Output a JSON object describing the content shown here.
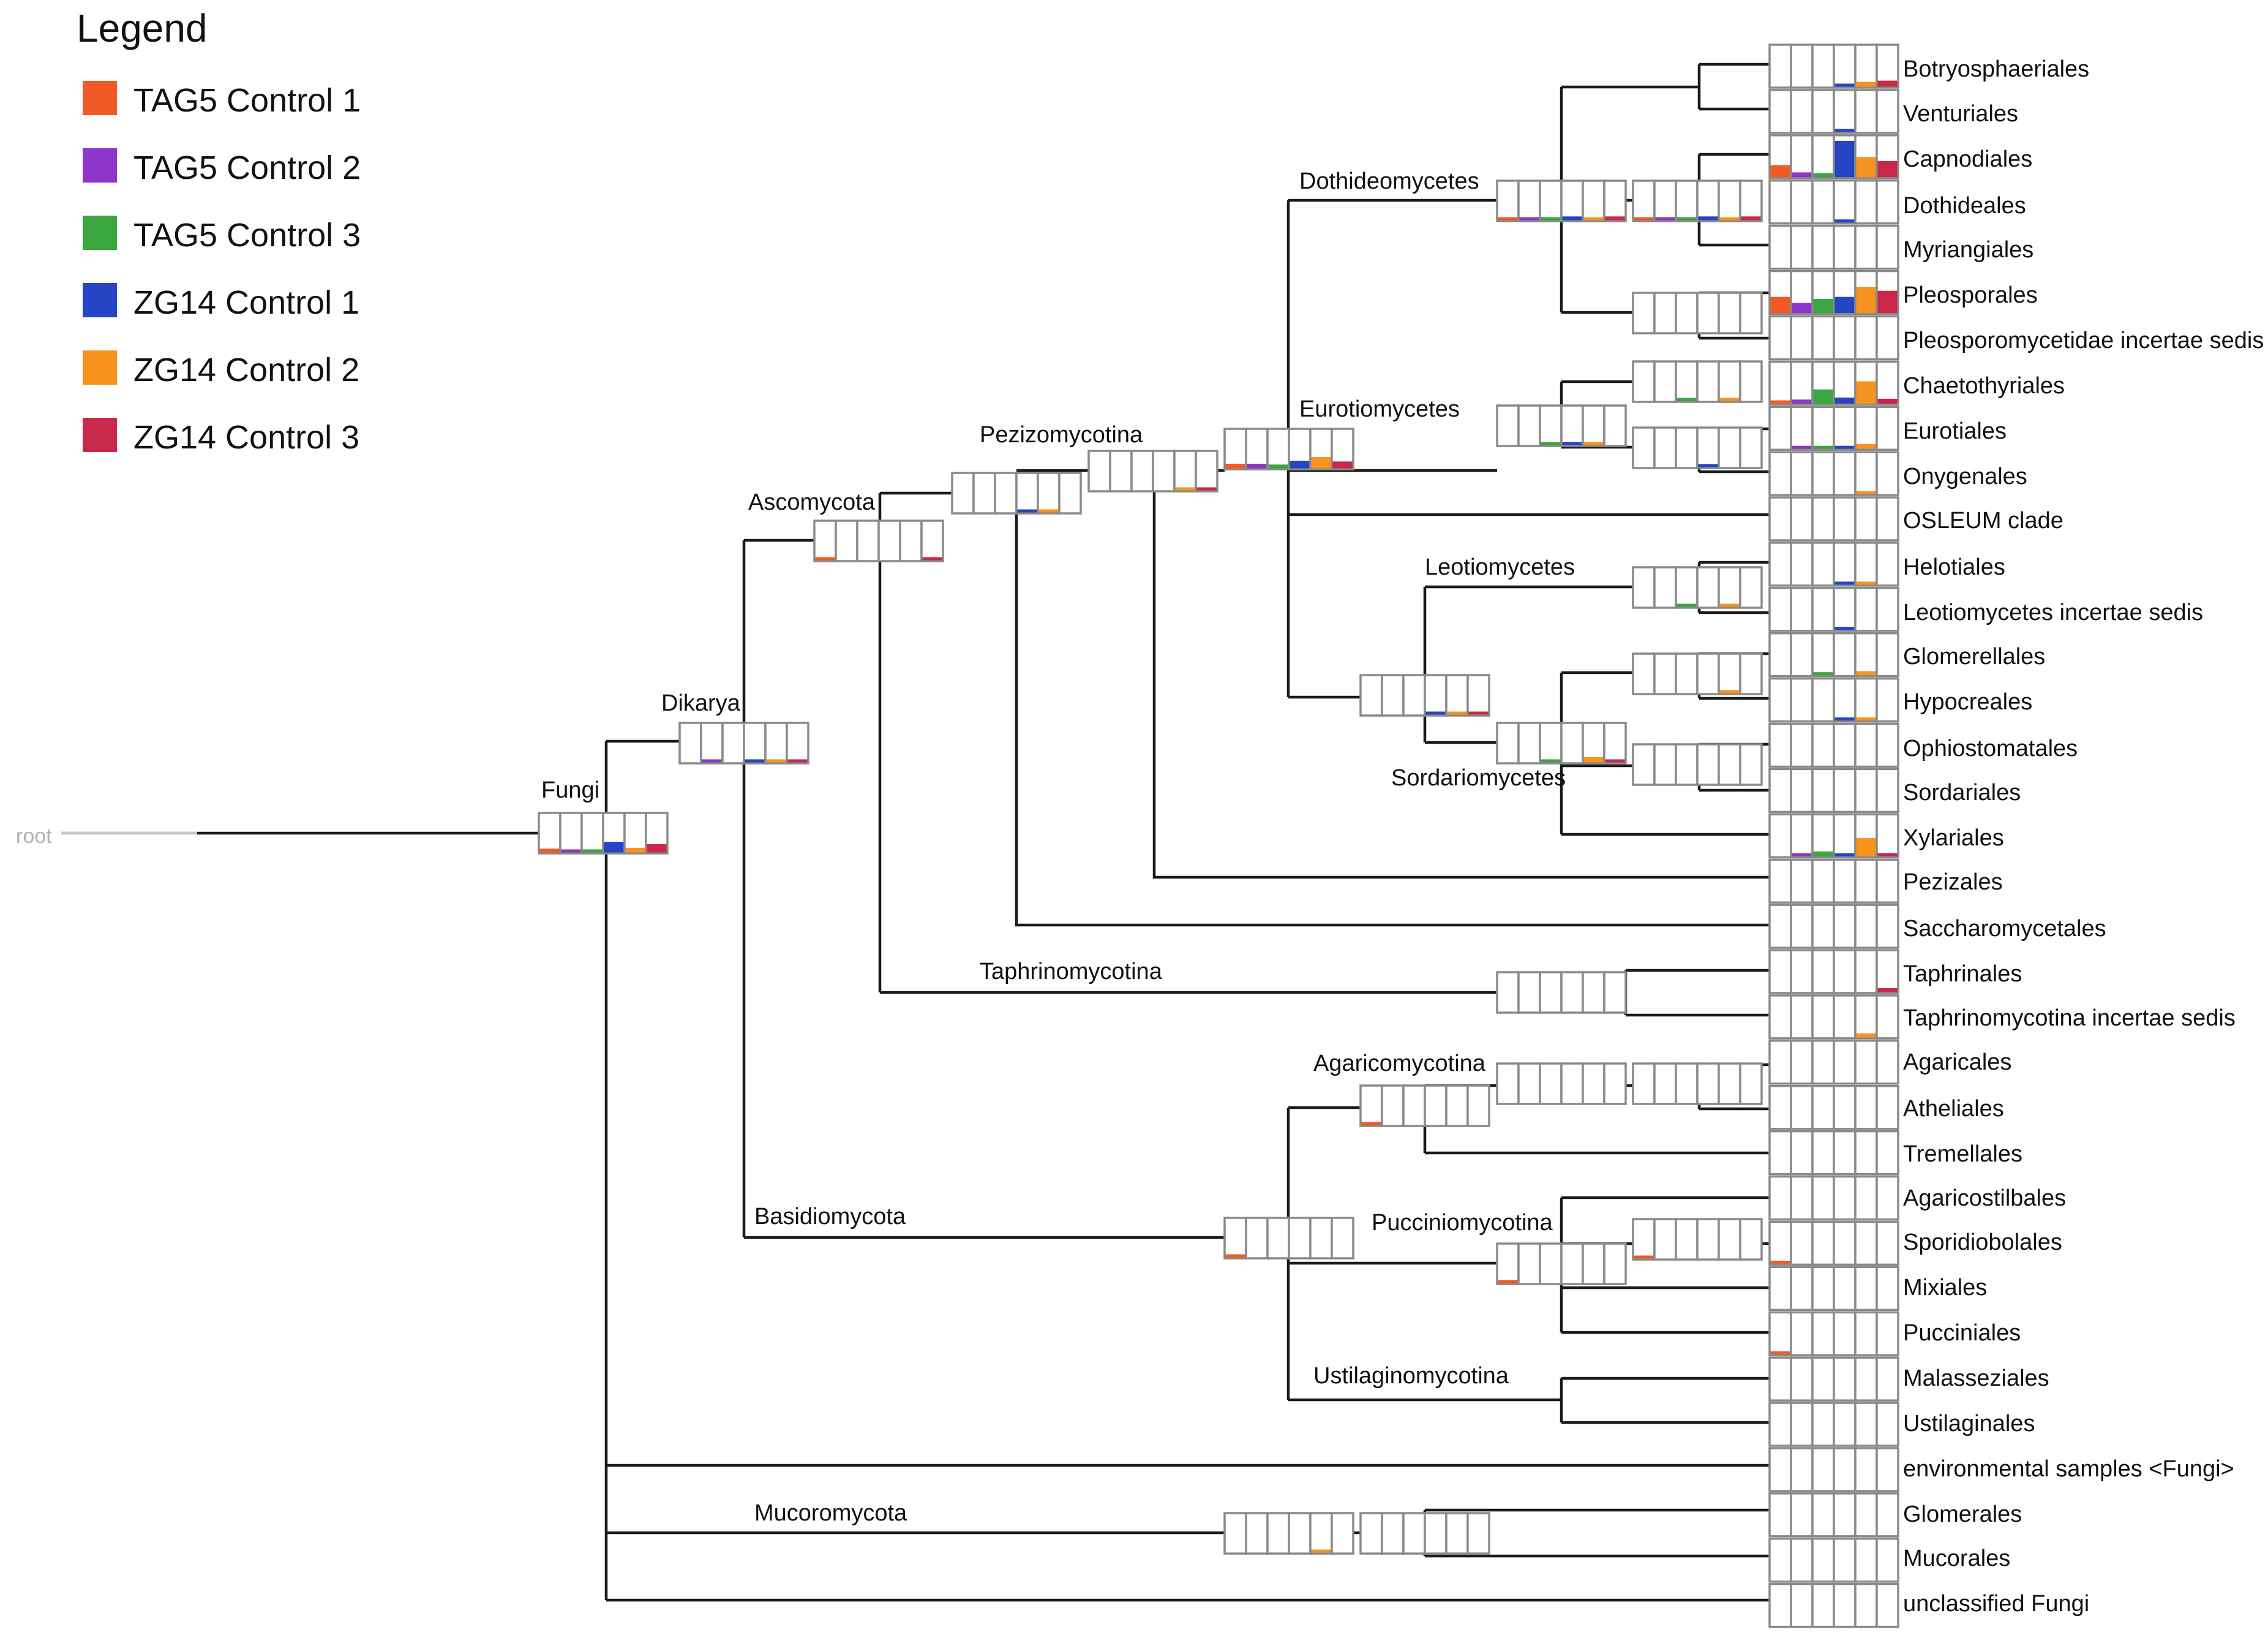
{
  "legend": {
    "title": "Legend",
    "items": [
      {
        "label": "TAG5 Control 1",
        "color": "#f15a24"
      },
      {
        "label": "TAG5 Control 2",
        "color": "#8b36c9"
      },
      {
        "label": "TAG5 Control 3",
        "color": "#3aa63f"
      },
      {
        "label": "ZG14 Control 1",
        "color": "#2545c4"
      },
      {
        "label": "ZG14 Control 2",
        "color": "#f7931e"
      },
      {
        "label": "ZG14 Control 3",
        "color": "#c8294a"
      }
    ]
  },
  "tree": {
    "root_label": "root",
    "internal_labels": {
      "fungi": "Fungi",
      "dikarya": "Dikarya",
      "ascomycota": "Ascomycota",
      "pezizomycotina": "Pezizomycotina",
      "dothideomycetes": "Dothideomycetes",
      "eurotiomycetes": "Eurotiomycetes",
      "leotiomycetes": "Leotiomycetes",
      "sordariomycetes": "Sordariomycetes",
      "taphrinomycotina": "Taphrinomycotina",
      "basidiomycota": "Basidiomycota",
      "agaricomycotina": "Agaricomycotina",
      "pucciniomycotina": "Pucciniomycotina",
      "ustilaginomycotina": "Ustilaginomycotina",
      "mucoromycota": "Mucoromycota"
    },
    "leaves": [
      {
        "name": "Botryosphaeriales",
        "values": [
          0,
          0,
          0,
          0.05,
          0.12,
          0.15
        ]
      },
      {
        "name": "Venturiales",
        "values": [
          0,
          0,
          0,
          0.05,
          0,
          0
        ]
      },
      {
        "name": "Capnodiales",
        "values": [
          0.3,
          0.12,
          0.1,
          0.9,
          0.5,
          0.4
        ]
      },
      {
        "name": "Dothideales",
        "values": [
          0,
          0,
          0,
          0.05,
          0,
          0
        ]
      },
      {
        "name": "Myriangiales",
        "values": [
          0,
          0,
          0,
          0,
          0,
          0
        ]
      },
      {
        "name": "Pleosporales",
        "values": [
          0.4,
          0.25,
          0.35,
          0.4,
          0.65,
          0.55
        ]
      },
      {
        "name": "Pleosporomycetidae incertae sedis",
        "values": [
          0,
          0,
          0,
          0,
          0,
          0
        ]
      },
      {
        "name": "Chaetothyriales",
        "values": [
          0.08,
          0.1,
          0.35,
          0.15,
          0.55,
          0.12
        ]
      },
      {
        "name": "Eurotiales",
        "values": [
          0,
          0.05,
          0.05,
          0.05,
          0.12,
          0
        ]
      },
      {
        "name": "Onygenales",
        "values": [
          0,
          0,
          0,
          0,
          0.06,
          0
        ]
      },
      {
        "name": "OSLEUM clade",
        "values": [
          0,
          0,
          0,
          0,
          0,
          0
        ]
      },
      {
        "name": "Helotiales",
        "values": [
          0,
          0,
          0,
          0.04,
          0.06,
          0
        ]
      },
      {
        "name": "Leotiomycetes incertae sedis",
        "values": [
          0,
          0,
          0,
          0.04,
          0,
          0
        ]
      },
      {
        "name": "Glomerellales",
        "values": [
          0,
          0,
          0.05,
          0,
          0.1,
          0
        ]
      },
      {
        "name": "Hypocreales",
        "values": [
          0,
          0,
          0,
          0.04,
          0.06,
          0
        ]
      },
      {
        "name": "Ophiostomatales",
        "values": [
          0,
          0,
          0,
          0,
          0,
          0
        ]
      },
      {
        "name": "Sordariales",
        "values": [
          0,
          0,
          0,
          0,
          0,
          0
        ]
      },
      {
        "name": "Xylariales",
        "values": [
          0,
          0.05,
          0.12,
          0.06,
          0.45,
          0.08
        ]
      },
      {
        "name": "Pezizales",
        "values": [
          0,
          0,
          0,
          0,
          0,
          0
        ]
      },
      {
        "name": "Saccharomycetales",
        "values": [
          0,
          0,
          0,
          0,
          0,
          0
        ]
      },
      {
        "name": "Taphrinales",
        "values": [
          0,
          0,
          0,
          0,
          0,
          0.1
        ]
      },
      {
        "name": "Taphrinomycotina incertae sedis",
        "values": [
          0,
          0,
          0,
          0,
          0.1,
          0
        ]
      },
      {
        "name": "Agaricales",
        "values": [
          0,
          0,
          0,
          0,
          0,
          0
        ]
      },
      {
        "name": "Atheliales",
        "values": [
          0,
          0,
          0,
          0,
          0,
          0
        ]
      },
      {
        "name": "Tremellales",
        "values": [
          0,
          0,
          0,
          0,
          0,
          0
        ]
      },
      {
        "name": "Agaricostilbales",
        "values": [
          0,
          0,
          0,
          0,
          0,
          0
        ]
      },
      {
        "name": "Sporidiobolales",
        "values": [
          0.05,
          0,
          0,
          0,
          0,
          0
        ]
      },
      {
        "name": "Mixiales",
        "values": [
          0,
          0,
          0,
          0,
          0,
          0
        ]
      },
      {
        "name": "Pucciniales",
        "values": [
          0.04,
          0,
          0,
          0,
          0,
          0
        ]
      },
      {
        "name": "Malasseziales",
        "values": [
          0,
          0,
          0,
          0,
          0,
          0
        ]
      },
      {
        "name": "Ustilaginales",
        "values": [
          0,
          0,
          0,
          0,
          0,
          0
        ]
      },
      {
        "name": "environmental samples <Fungi>",
        "values": [
          0,
          0,
          0,
          0,
          0,
          0
        ]
      },
      {
        "name": "Glomerales",
        "values": [
          0,
          0,
          0,
          0,
          0,
          0
        ]
      },
      {
        "name": "Mucorales",
        "values": [
          0,
          0,
          0,
          0,
          0,
          0
        ]
      },
      {
        "name": "unclassified Fungi",
        "values": [
          0,
          0,
          0,
          0,
          0,
          0
        ]
      }
    ]
  }
}
